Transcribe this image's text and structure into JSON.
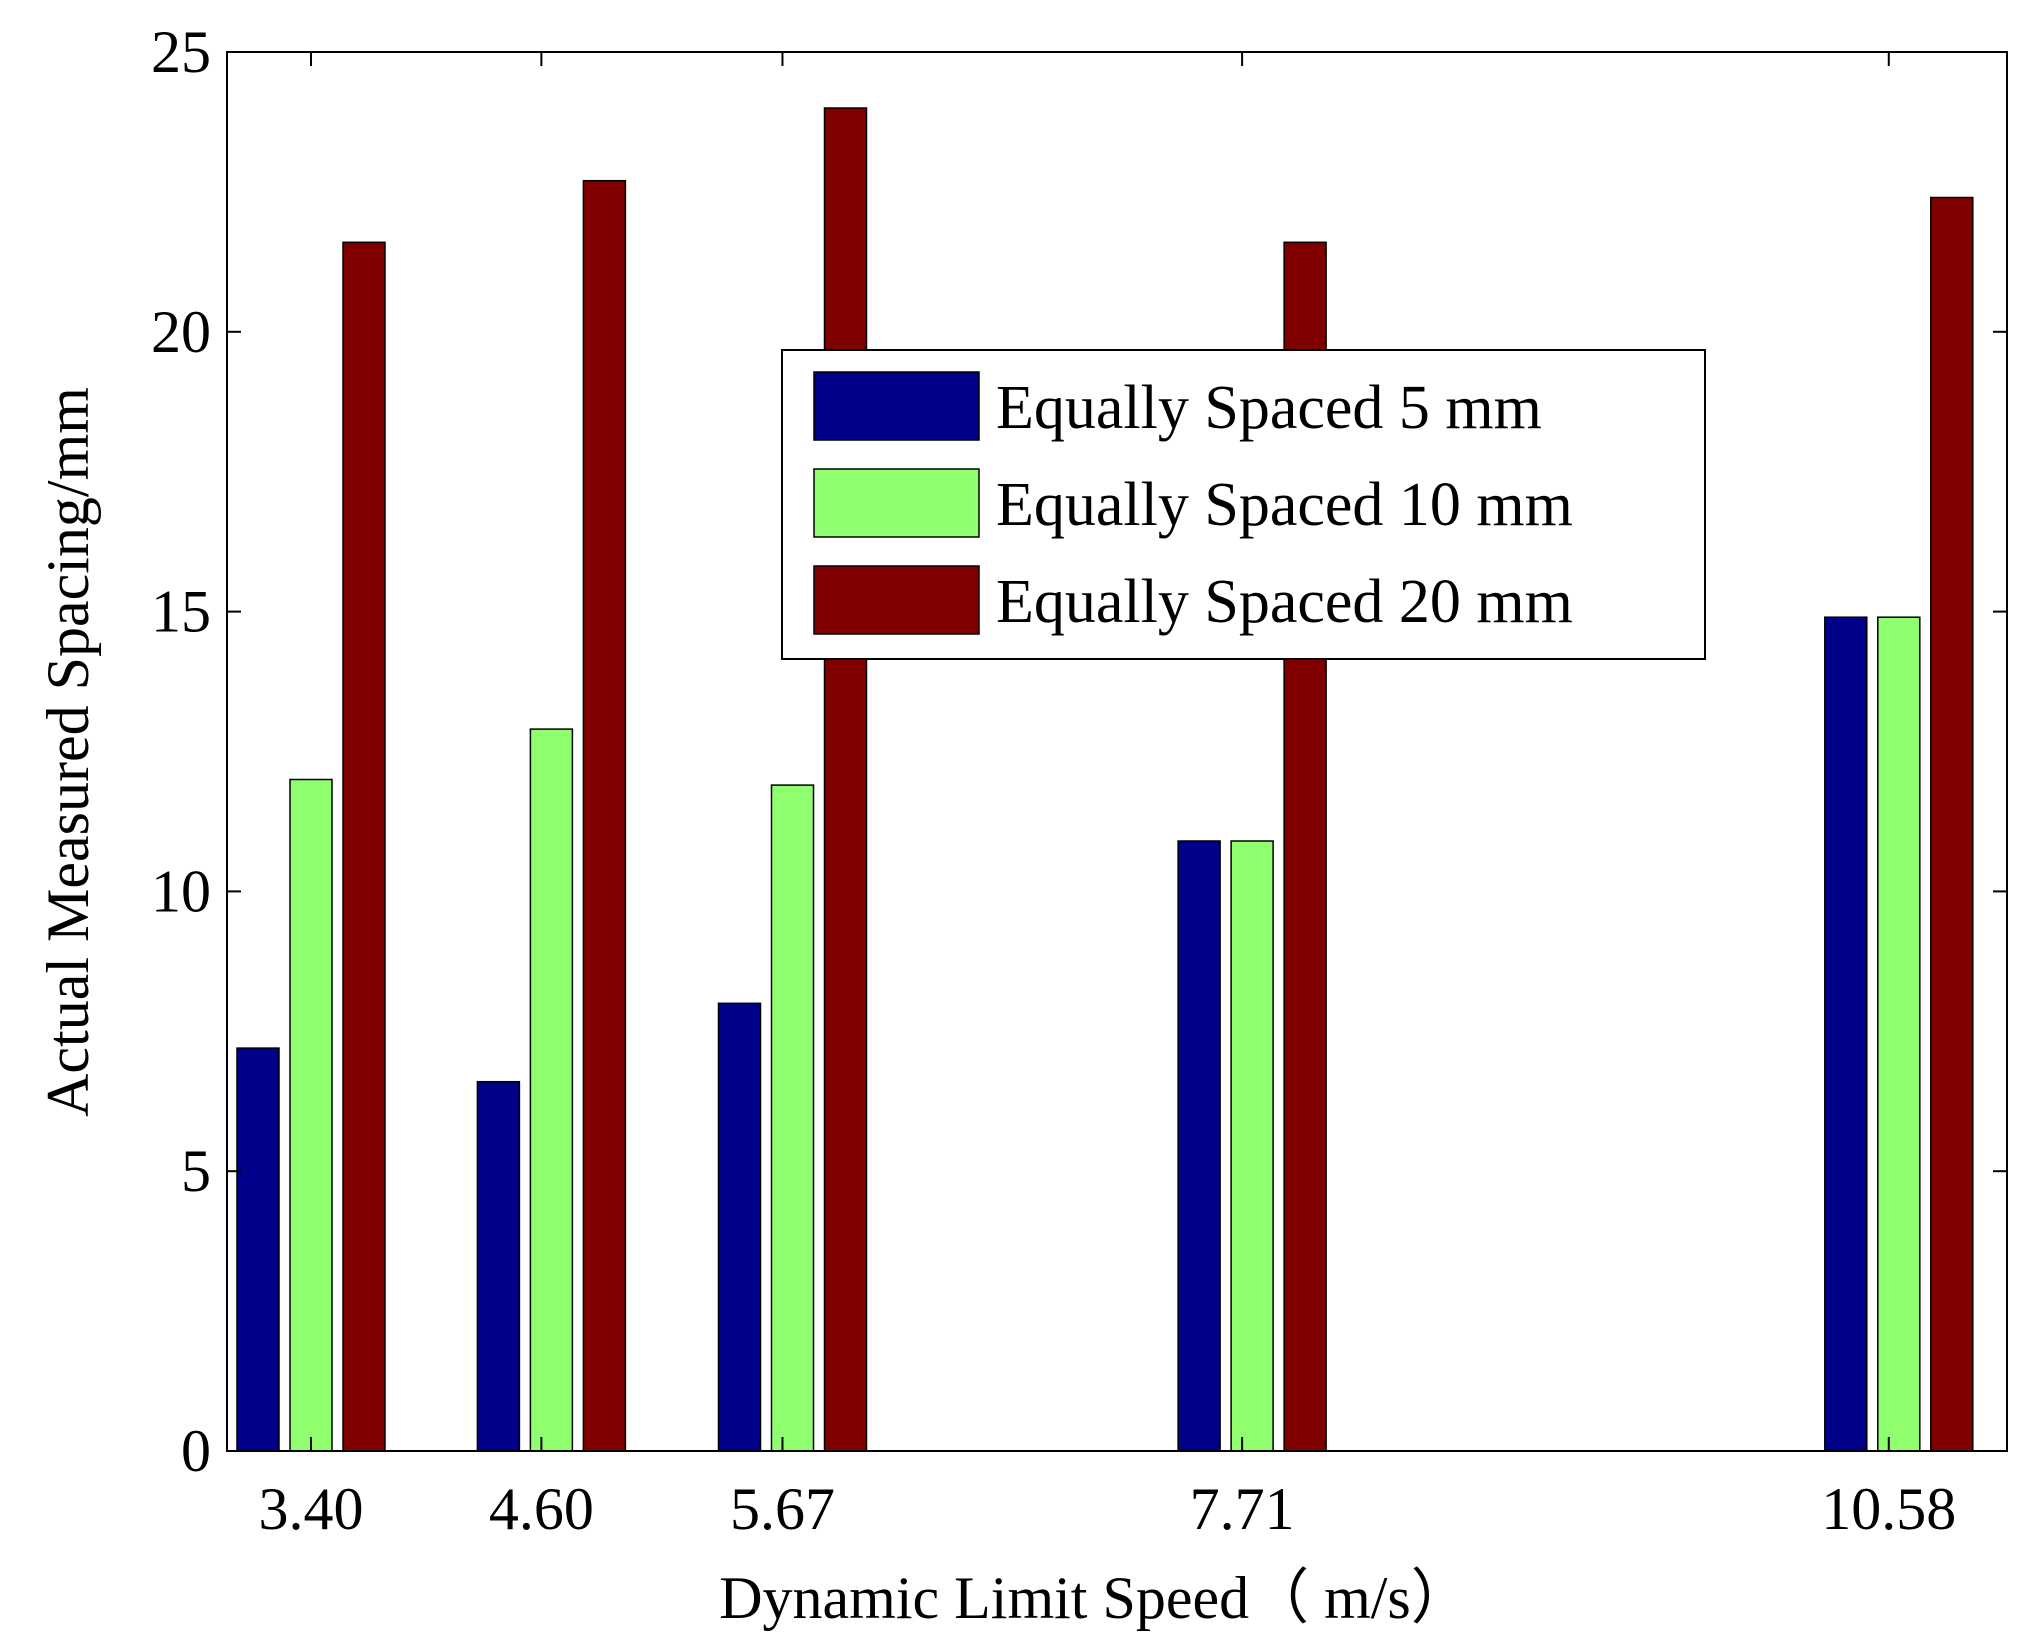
{
  "chart_data": {
    "type": "bar",
    "title": "",
    "xlabel": "Dynamic Limit Speed（ m/s）",
    "ylabel": "Actual Measured Spacing/mm",
    "categories": [
      "3.40",
      "4.60",
      "5.67",
      "7.71",
      "10.58"
    ],
    "x": [
      3.4,
      4.6,
      5.67,
      7.71,
      10.58
    ],
    "xlim": [
      3.4,
      11.3
    ],
    "ylim": [
      0,
      25
    ],
    "yticks": [
      0,
      5,
      10,
      15,
      20,
      25
    ],
    "grid": false,
    "legend_position": "upper-center",
    "series": [
      {
        "name": "Equally Spaced 5 mm",
        "color": "#000088",
        "values": [
          7.2,
          6.6,
          8.0,
          10.9,
          14.9
        ]
      },
      {
        "name": "Equally Spaced 10 mm",
        "color": "#8fff70",
        "values": [
          12.0,
          12.9,
          11.9,
          10.9,
          14.9
        ]
      },
      {
        "name": "Equally Spaced 20 mm",
        "color": "#800000",
        "values": [
          21.6,
          22.7,
          24.0,
          21.6,
          22.4
        ]
      }
    ]
  }
}
